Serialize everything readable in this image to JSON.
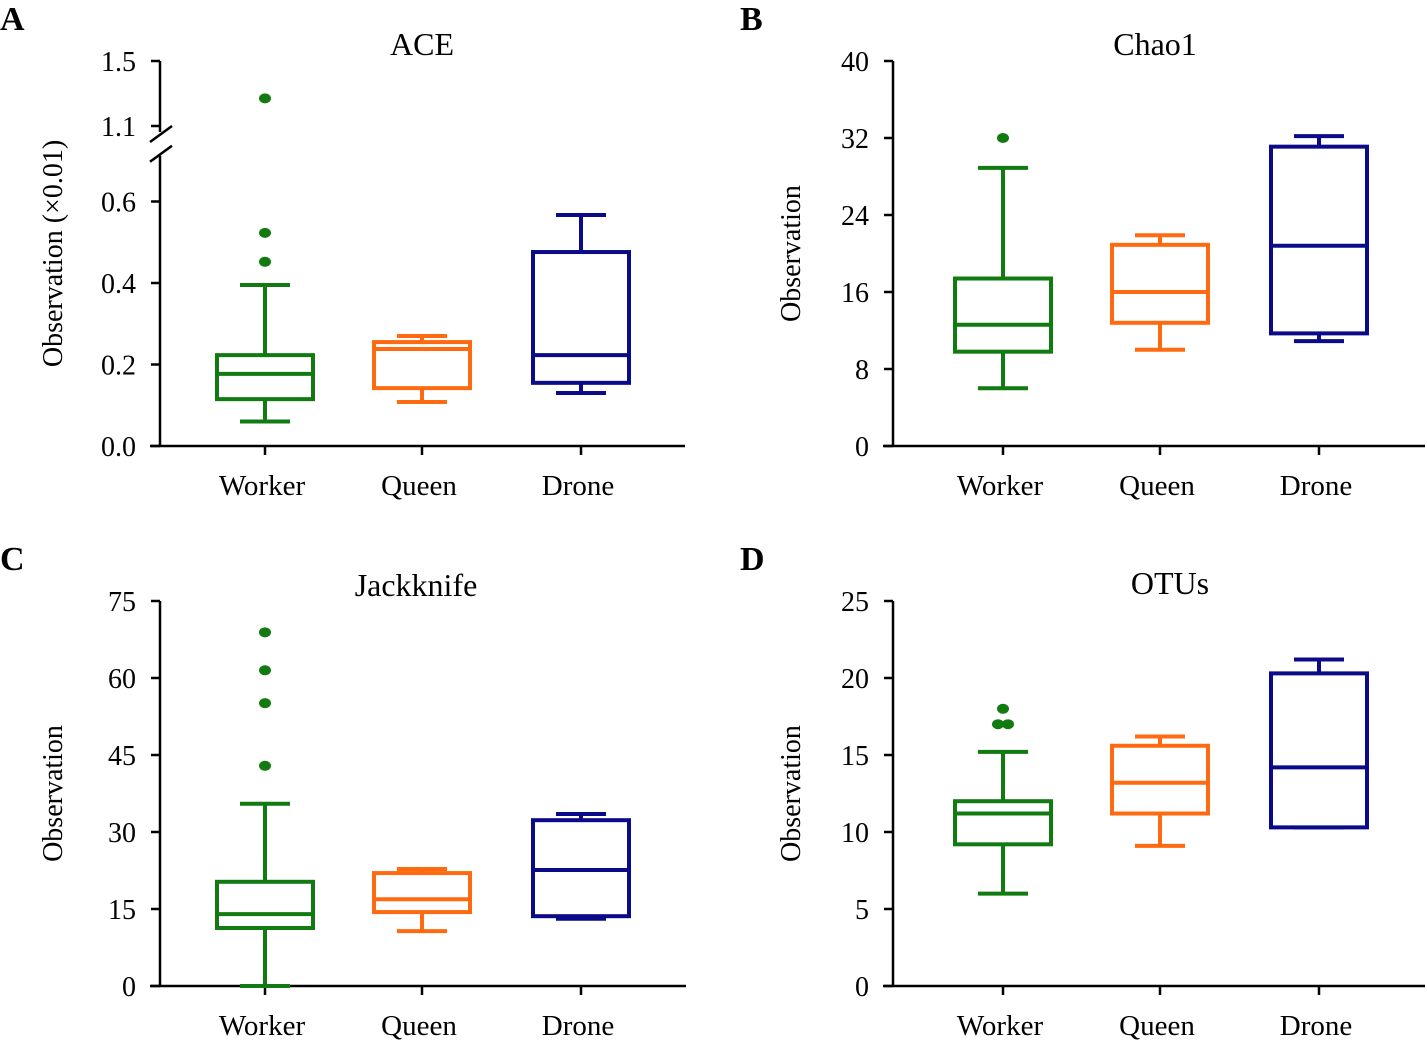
{
  "colors": {
    "Worker": "#117a11",
    "Queen": "#ff6a10",
    "Drone": "#0b0b8a"
  },
  "chart_data": [
    {
      "panel": "A",
      "type": "box",
      "title": "ACE",
      "ylabel": "Observation (×0.01)",
      "categories": [
        "Worker",
        "Queen",
        "Drone"
      ],
      "ylim": [
        0,
        1.5
      ],
      "axis_break": [
        0.7,
        1.1
      ],
      "yticks": [
        "0.0",
        "0.2",
        "0.4",
        "0.6",
        "1.1",
        "1.5"
      ],
      "boxes": [
        {
          "min": 0.06,
          "q1": 0.115,
          "median": 0.177,
          "q3": 0.223,
          "max": 0.395,
          "outliers": [
            0.452,
            0.523,
            1.27
          ]
        },
        {
          "min": 0.108,
          "q1": 0.142,
          "median": 0.238,
          "q3": 0.255,
          "max": 0.27,
          "outliers": []
        },
        {
          "min": 0.13,
          "q1": 0.155,
          "median": 0.223,
          "q3": 0.476,
          "max": 0.567,
          "outliers": []
        }
      ]
    },
    {
      "panel": "B",
      "type": "box",
      "title": "Chao1",
      "ylabel": "Observation",
      "categories": [
        "Worker",
        "Queen",
        "Drone"
      ],
      "ylim": [
        0,
        40
      ],
      "yticks": [
        "0",
        "8",
        "16",
        "24",
        "32",
        "40"
      ],
      "boxes": [
        {
          "min": 6.0,
          "q1": 9.8,
          "median": 12.6,
          "q3": 17.4,
          "max": 28.9,
          "outliers": [
            32.0
          ]
        },
        {
          "min": 10.0,
          "q1": 12.8,
          "median": 16.0,
          "q3": 20.9,
          "max": 21.9,
          "outliers": []
        },
        {
          "min": 10.9,
          "q1": 11.7,
          "median": 20.8,
          "q3": 31.1,
          "max": 32.2,
          "outliers": []
        }
      ]
    },
    {
      "panel": "C",
      "type": "box",
      "title": "Jackknife",
      "ylabel": "Observation",
      "categories": [
        "Worker",
        "Queen",
        "Drone"
      ],
      "ylim": [
        0,
        75
      ],
      "yticks": [
        "0",
        "15",
        "30",
        "45",
        "60",
        "75"
      ],
      "boxes": [
        {
          "min": 0,
          "q1": 11.3,
          "median": 14.0,
          "q3": 20.3,
          "max": 35.5,
          "outliers": [
            42.9,
            55.1,
            61.5,
            68.9
          ]
        },
        {
          "min": 10.7,
          "q1": 14.4,
          "median": 16.9,
          "q3": 22.0,
          "max": 22.8,
          "outliers": []
        },
        {
          "min": 13.1,
          "q1": 13.6,
          "median": 22.6,
          "q3": 32.3,
          "max": 33.5,
          "outliers": []
        }
      ]
    },
    {
      "panel": "D",
      "type": "box",
      "title": "OTUs",
      "ylabel": "Observation",
      "categories": [
        "Worker",
        "Queen",
        "Drone"
      ],
      "ylim": [
        0,
        25
      ],
      "yticks": [
        "0",
        "5",
        "10",
        "15",
        "20",
        "25"
      ],
      "boxes": [
        {
          "min": 6.0,
          "q1": 9.2,
          "median": 11.2,
          "q3": 12.0,
          "max": 15.2,
          "outliers": [
            17,
            17,
            18
          ]
        },
        {
          "min": 9.1,
          "q1": 11.2,
          "median": 13.2,
          "q3": 15.6,
          "max": 16.2,
          "outliers": []
        },
        {
          "min": 10.3,
          "q1": 10.3,
          "median": 14.2,
          "q3": 20.3,
          "max": 21.2,
          "outliers": []
        }
      ]
    }
  ]
}
